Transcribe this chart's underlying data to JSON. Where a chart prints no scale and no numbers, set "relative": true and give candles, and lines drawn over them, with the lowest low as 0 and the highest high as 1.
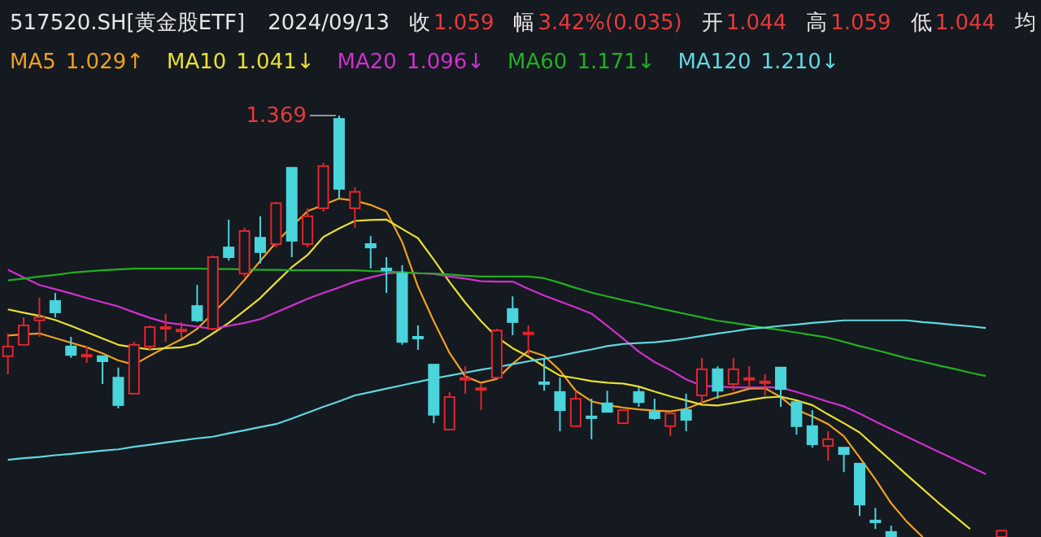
{
  "chart_data": {
    "type": "candlestick",
    "relative": true,
    "title": "517520.SH[黄金股ETF]",
    "annotations": [
      "2024/09/13",
      "收",
      "1.059",
      "幅",
      "3.42%(0.035)",
      "开",
      "1.044",
      "高",
      "1.059",
      "低",
      "1.044",
      "均",
      "1.369",
      "1.029↑",
      "1.041↓",
      "1.096↓",
      "1.171↓",
      "1.210↓"
    ],
    "categories": [
      null,
      null,
      null,
      null,
      null,
      null,
      null,
      null,
      null,
      null,
      null,
      null,
      null,
      null,
      null,
      null,
      null,
      null,
      null,
      null,
      null,
      null,
      null,
      null,
      null,
      null,
      null,
      null,
      null,
      null,
      null,
      null,
      null,
      null,
      null,
      null,
      null,
      null,
      null,
      null,
      null,
      null,
      null,
      null,
      null,
      null,
      null,
      null,
      null,
      null,
      null,
      null,
      null,
      null,
      null,
      null,
      null,
      null,
      null,
      null,
      null,
      null,
      null,
      null,
      null,
      null
    ],
    "ohlc": [
      [
        0.429,
        0.483,
        0.386,
        0.452
      ],
      [
        0.456,
        0.521,
        0.456,
        0.502
      ],
      [
        0.514,
        0.568,
        0.475,
        0.521
      ],
      [
        0.56,
        0.579,
        0.521,
        0.533
      ],
      [
        0.452,
        0.475,
        0.425,
        0.432
      ],
      [
        0.43,
        0.452,
        0.413,
        0.432
      ],
      [
        0.429,
        0.429,
        0.363,
        0.417
      ],
      [
        0.378,
        0.402,
        0.305,
        0.313
      ],
      [
        0.34,
        0.463,
        0.34,
        0.456
      ],
      [
        0.452,
        0.502,
        0.444,
        0.498
      ],
      [
        0.497,
        0.529,
        0.463,
        0.498
      ],
      [
        0.49,
        0.51,
        0.471,
        0.492
      ],
      [
        0.548,
        0.598,
        0.51,
        0.514
      ],
      [
        0.494,
        0.668,
        0.49,
        0.664
      ],
      [
        0.687,
        0.753,
        0.656,
        0.664
      ],
      [
        0.625,
        0.734,
        0.618,
        0.726
      ],
      [
        0.71,
        0.761,
        0.649,
        0.676
      ],
      [
        0.695,
        0.795,
        0.687,
        0.792
      ],
      [
        0.876,
        0.876,
        0.664,
        0.703
      ],
      [
        0.695,
        0.78,
        0.687,
        0.761
      ],
      [
        0.78,
        0.888,
        0.772,
        0.88
      ],
      [
        0.992,
        1.0,
        0.803,
        0.826
      ],
      [
        0.78,
        0.83,
        0.734,
        0.819
      ],
      [
        0.695,
        0.714,
        0.637,
        0.687
      ],
      [
        0.637,
        0.664,
        0.579,
        0.635
      ],
      [
        0.625,
        0.645,
        0.456,
        0.463
      ],
      [
        0.475,
        0.502,
        0.444,
        0.473
      ],
      [
        0.409,
        0.409,
        0.27,
        0.29
      ],
      [
        0.255,
        0.344,
        0.255,
        0.332
      ],
      [
        0.375,
        0.405,
        0.34,
        0.377
      ],
      [
        0.351,
        0.363,
        0.301,
        0.353
      ],
      [
        0.378,
        0.494,
        0.378,
        0.49
      ],
      [
        0.541,
        0.571,
        0.479,
        0.51
      ],
      [
        0.483,
        0.502,
        0.432,
        0.485
      ],
      [
        0.367,
        0.425,
        0.347,
        0.365
      ],
      [
        0.344,
        0.378,
        0.251,
        0.301
      ],
      [
        0.263,
        0.347,
        0.263,
        0.328
      ],
      [
        0.286,
        0.328,
        0.232,
        0.284
      ],
      [
        0.317,
        0.347,
        0.297,
        0.297
      ],
      [
        0.27,
        0.301,
        0.27,
        0.301
      ],
      [
        0.344,
        0.355,
        0.309,
        0.32
      ],
      [
        0.297,
        0.328,
        0.278,
        0.282
      ],
      [
        0.263,
        0.293,
        0.239,
        0.293
      ],
      [
        0.301,
        0.34,
        0.251,
        0.278
      ],
      [
        0.336,
        0.425,
        0.317,
        0.398
      ],
      [
        0.398,
        0.405,
        0.328,
        0.347
      ],
      [
        0.363,
        0.425,
        0.347,
        0.398
      ],
      [
        0.375,
        0.405,
        0.355,
        0.377
      ],
      [
        0.367,
        0.386,
        0.336,
        0.369
      ],
      [
        0.402,
        0.402,
        0.309,
        0.351
      ],
      [
        0.32,
        0.32,
        0.243,
        0.263
      ],
      [
        0.263,
        0.301,
        0.212,
        0.22
      ],
      [
        0.216,
        0.251,
        0.181,
        0.232
      ],
      [
        0.212,
        0.212,
        0.154,
        0.197
      ],
      [
        0.174,
        0.174,
        0.05,
        0.077
      ],
      [
        0.039,
        0.069,
        0.019,
        0.035
      ],
      [
        0.012,
        0.027,
        0.0,
        0.002
      ],
      null,
      null,
      null,
      null,
      null,
      null,
      [
        0.0,
        0.015,
        0.0,
        0.015
      ],
      null,
      null
    ],
    "series": [
      {
        "name": "MA5",
        "type": "line",
        "color": "#f0a020",
        "values": [
          0.478,
          0.481,
          0.483,
          0.472,
          0.461,
          0.45,
          0.436,
          0.419,
          0.409,
          0.43,
          0.45,
          0.469,
          0.494,
          0.531,
          0.568,
          0.61,
          0.655,
          0.699,
          0.737,
          0.773,
          0.788,
          0.803,
          0.798,
          0.788,
          0.772,
          0.7,
          0.594,
          0.512,
          0.437,
          0.381,
          0.366,
          0.375,
          0.411,
          0.442,
          0.43,
          0.395,
          0.347,
          0.322,
          0.313,
          0.307,
          0.303,
          0.3,
          0.298,
          0.304,
          0.319,
          0.332,
          0.341,
          0.352,
          0.353,
          0.332,
          0.302,
          0.286,
          0.268,
          0.239,
          0.189,
          0.137,
          0.08,
          0.036,
          0.0,
          null,
          null,
          null,
          null,
          null,
          null,
          null
        ]
      },
      {
        "name": "MA10",
        "type": "line",
        "color": "#e8e030",
        "values": [
          0.54,
          0.532,
          0.525,
          0.515,
          0.501,
          0.486,
          0.471,
          0.456,
          0.45,
          0.445,
          0.448,
          0.45,
          0.459,
          0.483,
          0.508,
          0.537,
          0.567,
          0.604,
          0.64,
          0.669,
          0.712,
          0.732,
          0.75,
          0.752,
          0.753,
          0.731,
          0.709,
          0.658,
          0.605,
          0.556,
          0.512,
          0.474,
          0.448,
          0.428,
          0.405,
          0.383,
          0.377,
          0.37,
          0.366,
          0.364,
          0.357,
          0.345,
          0.334,
          0.324,
          0.314,
          0.312,
          0.318,
          0.325,
          0.331,
          0.333,
          0.324,
          0.313,
          0.291,
          0.27,
          0.248,
          0.214,
          0.181,
          0.147,
          0.114,
          0.081,
          0.05,
          0.019,
          null,
          null,
          null,
          null
        ]
      },
      {
        "name": "MA20",
        "type": "line",
        "color": "#d030d0",
        "values": [
          0.634,
          0.616,
          0.598,
          0.588,
          0.578,
          0.567,
          0.557,
          0.547,
          0.533,
          0.52,
          0.509,
          0.504,
          0.499,
          0.494,
          0.501,
          0.508,
          0.517,
          0.533,
          0.549,
          0.565,
          0.579,
          0.592,
          0.606,
          0.616,
          0.625,
          0.628,
          0.626,
          0.624,
          0.618,
          0.613,
          0.607,
          0.606,
          0.606,
          0.589,
          0.573,
          0.559,
          0.545,
          0.53,
          0.501,
          0.471,
          0.44,
          0.415,
          0.396,
          0.374,
          0.359,
          0.357,
          0.355,
          0.355,
          0.355,
          0.355,
          0.344,
          0.333,
          0.321,
          0.31,
          0.293,
          0.274,
          0.256,
          0.238,
          0.22,
          0.202,
          0.185,
          0.167,
          0.149,
          null,
          null,
          null
        ]
      },
      {
        "name": "MA60",
        "type": "line",
        "color": "#20b020",
        "values": [
          0.609,
          0.613,
          0.618,
          0.622,
          0.627,
          0.63,
          0.633,
          0.635,
          0.637,
          0.637,
          0.637,
          0.637,
          0.637,
          0.636,
          0.636,
          0.635,
          0.634,
          0.634,
          0.633,
          0.633,
          0.633,
          0.633,
          0.633,
          0.631,
          0.63,
          0.628,
          0.626,
          0.625,
          0.623,
          0.62,
          0.618,
          0.618,
          0.618,
          0.618,
          0.614,
          0.603,
          0.591,
          0.58,
          0.571,
          0.562,
          0.554,
          0.545,
          0.537,
          0.529,
          0.521,
          0.513,
          0.508,
          0.502,
          0.496,
          0.491,
          0.485,
          0.479,
          0.473,
          0.463,
          0.453,
          0.444,
          0.434,
          0.424,
          0.416,
          0.407,
          0.399,
          0.39,
          0.382,
          null,
          null,
          null
        ]
      },
      {
        "name": "MA120",
        "type": "line",
        "color": "#60d8e0",
        "values": [
          0.183,
          0.187,
          0.19,
          0.194,
          0.197,
          0.201,
          0.205,
          0.208,
          0.214,
          0.219,
          0.224,
          0.229,
          0.234,
          0.238,
          0.246,
          0.253,
          0.261,
          0.268,
          0.281,
          0.295,
          0.309,
          0.322,
          0.336,
          0.344,
          0.352,
          0.36,
          0.368,
          0.376,
          0.383,
          0.39,
          0.397,
          0.403,
          0.41,
          0.417,
          0.423,
          0.43,
          0.438,
          0.445,
          0.453,
          0.458,
          0.46,
          0.462,
          0.466,
          0.471,
          0.477,
          0.483,
          0.488,
          0.494,
          0.497,
          0.501,
          0.504,
          0.508,
          0.511,
          0.514,
          0.514,
          0.514,
          0.514,
          0.514,
          0.51,
          0.507,
          0.503,
          0.5,
          0.496,
          null,
          null,
          null
        ]
      }
    ],
    "legend": "top left"
  }
}
